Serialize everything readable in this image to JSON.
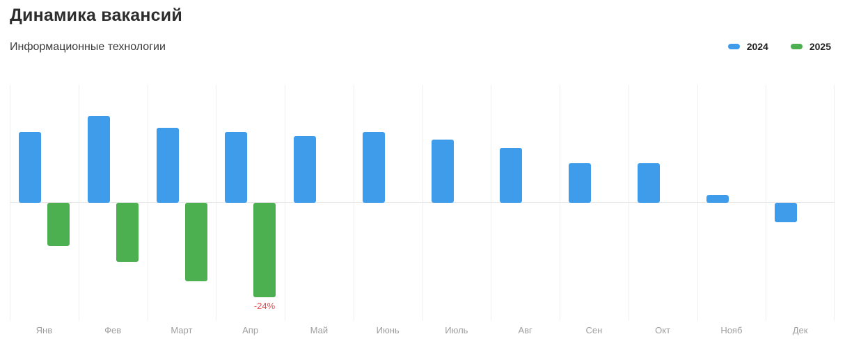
{
  "header": {
    "title": "Динамика вакансий",
    "subtitle": "Информационные технологии"
  },
  "legend": {
    "items": [
      {
        "label": "2024",
        "color": "#3f9ceb"
      },
      {
        "label": "2025",
        "color": "#4caf50"
      }
    ]
  },
  "colors": {
    "series_2024": "#3f9ceb",
    "series_2025": "#4caf50",
    "annotation_red": "#df5050",
    "gridline": "#efefef",
    "baseline": "#e7e7e7",
    "axis_label": "#9e9e9e"
  },
  "chart_data": {
    "type": "bar",
    "title": "Динамика вакансий",
    "subtitle": "Информационные технологии",
    "categories": [
      "Янв",
      "Фев",
      "Март",
      "Апр",
      "Май",
      "Июнь",
      "Июль",
      "Авг",
      "Сен",
      "Окт",
      "Нояб",
      "Дек"
    ],
    "series": [
      {
        "name": "2024",
        "color": "#3f9ceb",
        "values": [
          18,
          22,
          19,
          18,
          17,
          18,
          16,
          14,
          10,
          10,
          2,
          -5
        ]
      },
      {
        "name": "2025",
        "color": "#4caf50",
        "values": [
          -11,
          -15,
          -20,
          -24,
          null,
          null,
          null,
          null,
          null,
          null,
          null,
          null
        ]
      }
    ],
    "unit": "%",
    "ylim": [
      -30,
      30
    ],
    "annotations": [
      {
        "category": "Апр",
        "series": "2025",
        "text": "-24%",
        "color": "#df5050"
      }
    ],
    "grid": "vertical-only",
    "legend_position": "top-right",
    "xlabel": "",
    "ylabel": ""
  }
}
